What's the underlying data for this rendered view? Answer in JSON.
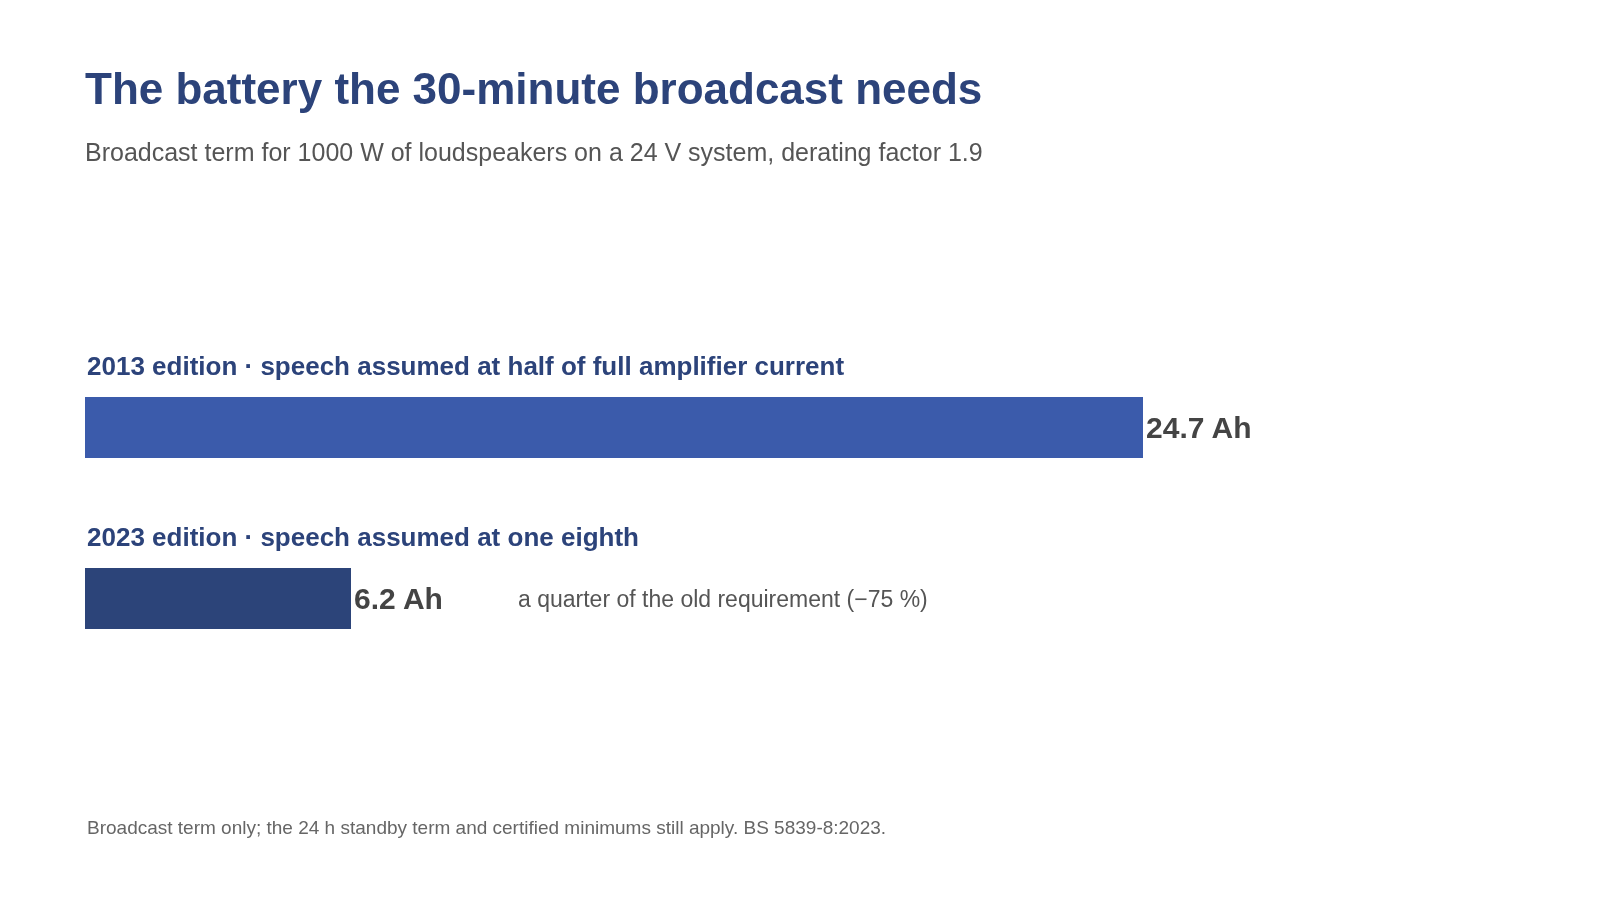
{
  "chart_data": {
    "type": "bar",
    "orientation": "horizontal",
    "title": "The battery the 30-minute broadcast needs",
    "subtitle": "Broadcast term for 1000 W of loudspeakers on a 24 V system, derating factor 1.9",
    "categories": [
      "2013 edition · speech assumed at half of full amplifier current",
      "2023 edition · speech assumed at one eighth"
    ],
    "values": [
      24.7,
      6.2
    ],
    "colors": [
      "#3b5bab",
      "#2c4479"
    ],
    "value_labels": [
      "24.7 Ah",
      "6.2 Ah"
    ],
    "annotations": [
      "a quarter of the old requirement (−75 %)",
      "Broadcast term only; the 24 h standby term and certified minimums still apply. BS 5839-8:2023."
    ],
    "legend": false
  }
}
